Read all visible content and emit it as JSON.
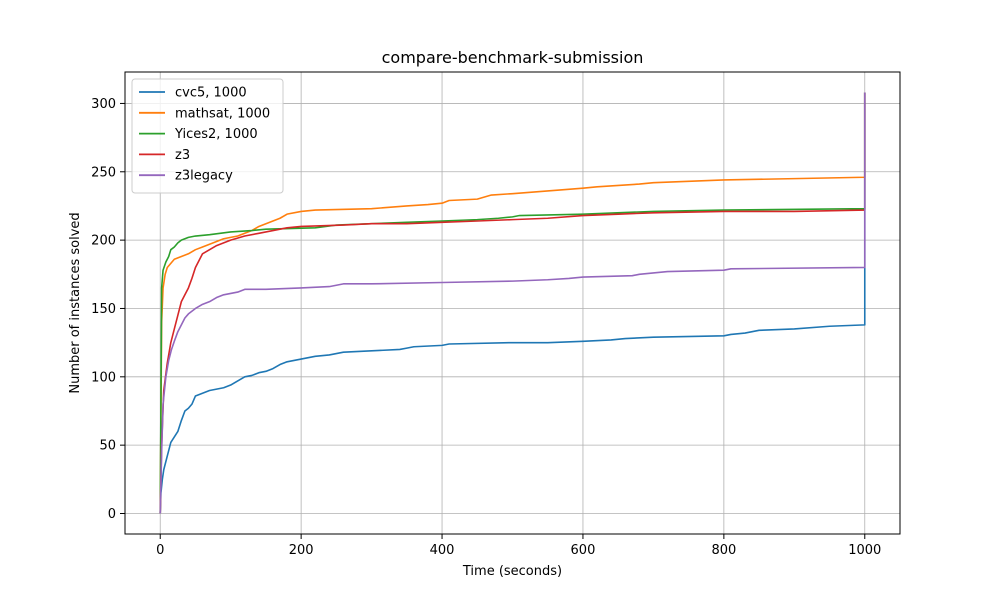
{
  "chart_data": {
    "type": "line",
    "title": "compare-benchmark-submission",
    "xlabel": "Time (seconds)",
    "ylabel": "Number of instances solved",
    "xlim": [
      -50,
      1050
    ],
    "ylim": [
      -15,
      323
    ],
    "xticks": [
      0,
      200,
      400,
      600,
      800,
      1000
    ],
    "yticks": [
      0,
      50,
      100,
      150,
      200,
      250,
      300
    ],
    "grid": true,
    "legend_position": "top-left",
    "series": [
      {
        "name": "cvc5, 1000",
        "color": "#1f77b4",
        "points": [
          [
            0,
            0
          ],
          [
            1,
            15
          ],
          [
            3,
            25
          ],
          [
            5,
            32
          ],
          [
            10,
            42
          ],
          [
            15,
            52
          ],
          [
            20,
            56
          ],
          [
            25,
            60
          ],
          [
            30,
            68
          ],
          [
            35,
            75
          ],
          [
            40,
            77
          ],
          [
            45,
            80
          ],
          [
            50,
            86
          ],
          [
            60,
            88
          ],
          [
            70,
            90
          ],
          [
            80,
            91
          ],
          [
            90,
            92
          ],
          [
            100,
            94
          ],
          [
            110,
            97
          ],
          [
            120,
            100
          ],
          [
            130,
            101
          ],
          [
            140,
            103
          ],
          [
            150,
            104
          ],
          [
            160,
            106
          ],
          [
            170,
            109
          ],
          [
            180,
            111
          ],
          [
            190,
            112
          ],
          [
            200,
            113
          ],
          [
            220,
            115
          ],
          [
            240,
            116
          ],
          [
            260,
            118
          ],
          [
            300,
            119
          ],
          [
            340,
            120
          ],
          [
            350,
            121
          ],
          [
            360,
            122
          ],
          [
            400,
            123
          ],
          [
            410,
            124
          ],
          [
            500,
            125
          ],
          [
            550,
            125
          ],
          [
            600,
            126
          ],
          [
            640,
            127
          ],
          [
            660,
            128
          ],
          [
            700,
            129
          ],
          [
            800,
            130
          ],
          [
            810,
            131
          ],
          [
            830,
            132
          ],
          [
            850,
            134
          ],
          [
            900,
            135
          ],
          [
            950,
            137
          ],
          [
            1000,
            138
          ],
          [
            1000,
            308
          ]
        ]
      },
      {
        "name": "mathsat, 1000",
        "color": "#ff7f0e",
        "points": [
          [
            0,
            0
          ],
          [
            2,
            140
          ],
          [
            4,
            165
          ],
          [
            7,
            175
          ],
          [
            10,
            180
          ],
          [
            15,
            183
          ],
          [
            20,
            186
          ],
          [
            30,
            188
          ],
          [
            40,
            190
          ],
          [
            50,
            193
          ],
          [
            60,
            195
          ],
          [
            70,
            197
          ],
          [
            80,
            199
          ],
          [
            90,
            201
          ],
          [
            100,
            202
          ],
          [
            110,
            203
          ],
          [
            120,
            205
          ],
          [
            130,
            207
          ],
          [
            140,
            210
          ],
          [
            150,
            212
          ],
          [
            160,
            214
          ],
          [
            170,
            216
          ],
          [
            180,
            219
          ],
          [
            200,
            221
          ],
          [
            220,
            222
          ],
          [
            300,
            223
          ],
          [
            350,
            225
          ],
          [
            380,
            226
          ],
          [
            400,
            227
          ],
          [
            410,
            229
          ],
          [
            450,
            230
          ],
          [
            470,
            233
          ],
          [
            500,
            234
          ],
          [
            550,
            236
          ],
          [
            600,
            238
          ],
          [
            620,
            239
          ],
          [
            680,
            241
          ],
          [
            700,
            242
          ],
          [
            800,
            244
          ],
          [
            900,
            245
          ],
          [
            1000,
            246
          ],
          [
            1000,
            308
          ]
        ]
      },
      {
        "name": "Yices2, 1000",
        "color": "#2ca02c",
        "points": [
          [
            0,
            0
          ],
          [
            2,
            165
          ],
          [
            4,
            178
          ],
          [
            8,
            184
          ],
          [
            12,
            188
          ],
          [
            15,
            193
          ],
          [
            20,
            195
          ],
          [
            25,
            198
          ],
          [
            30,
            200
          ],
          [
            40,
            202
          ],
          [
            50,
            203
          ],
          [
            70,
            204
          ],
          [
            100,
            206
          ],
          [
            130,
            207
          ],
          [
            150,
            208
          ],
          [
            220,
            209
          ],
          [
            250,
            211
          ],
          [
            300,
            212
          ],
          [
            350,
            213
          ],
          [
            400,
            214
          ],
          [
            450,
            215
          ],
          [
            480,
            216
          ],
          [
            500,
            217
          ],
          [
            510,
            218
          ],
          [
            600,
            219
          ],
          [
            700,
            221
          ],
          [
            800,
            222
          ],
          [
            1000,
            223
          ],
          [
            1000,
            308
          ]
        ]
      },
      {
        "name": "z3",
        "color": "#d62728",
        "points": [
          [
            0,
            0
          ],
          [
            2,
            50
          ],
          [
            5,
            90
          ],
          [
            10,
            110
          ],
          [
            15,
            125
          ],
          [
            20,
            135
          ],
          [
            25,
            145
          ],
          [
            30,
            155
          ],
          [
            35,
            160
          ],
          [
            40,
            165
          ],
          [
            45,
            172
          ],
          [
            50,
            180
          ],
          [
            55,
            185
          ],
          [
            60,
            190
          ],
          [
            70,
            193
          ],
          [
            80,
            196
          ],
          [
            90,
            198
          ],
          [
            100,
            200
          ],
          [
            120,
            203
          ],
          [
            140,
            205
          ],
          [
            160,
            207
          ],
          [
            180,
            209
          ],
          [
            200,
            210
          ],
          [
            260,
            211
          ],
          [
            300,
            212
          ],
          [
            350,
            212
          ],
          [
            400,
            213
          ],
          [
            450,
            214
          ],
          [
            500,
            215
          ],
          [
            550,
            216
          ],
          [
            600,
            218
          ],
          [
            650,
            219
          ],
          [
            700,
            220
          ],
          [
            800,
            221
          ],
          [
            900,
            221
          ],
          [
            1000,
            222
          ],
          [
            1000,
            308
          ]
        ]
      },
      {
        "name": "z3legacy",
        "color": "#9467bd",
        "points": [
          [
            0,
            0
          ],
          [
            2,
            45
          ],
          [
            4,
            80
          ],
          [
            8,
            100
          ],
          [
            12,
            112
          ],
          [
            16,
            120
          ],
          [
            20,
            126
          ],
          [
            25,
            133
          ],
          [
            30,
            138
          ],
          [
            35,
            143
          ],
          [
            40,
            146
          ],
          [
            50,
            150
          ],
          [
            60,
            153
          ],
          [
            70,
            155
          ],
          [
            80,
            158
          ],
          [
            90,
            160
          ],
          [
            100,
            161
          ],
          [
            110,
            162
          ],
          [
            120,
            164
          ],
          [
            150,
            164
          ],
          [
            200,
            165
          ],
          [
            240,
            166
          ],
          [
            260,
            168
          ],
          [
            300,
            168
          ],
          [
            400,
            169
          ],
          [
            500,
            170
          ],
          [
            550,
            171
          ],
          [
            580,
            172
          ],
          [
            600,
            173
          ],
          [
            670,
            174
          ],
          [
            680,
            175
          ],
          [
            720,
            177
          ],
          [
            800,
            178
          ],
          [
            810,
            179
          ],
          [
            1000,
            180
          ],
          [
            1000,
            308
          ]
        ]
      }
    ]
  }
}
